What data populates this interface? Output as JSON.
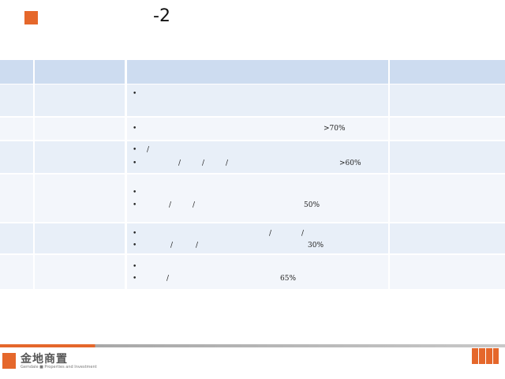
{
  "header": {
    "title": "-2"
  },
  "table": {
    "rows": [
      {
        "lines": [
          [
            "•"
          ]
        ]
      },
      {
        "lines": [
          [
            "•",
            ">70%"
          ]
        ]
      },
      {
        "lines": [
          [
            "•",
            "/"
          ],
          [
            "•",
            "/",
            "/",
            "/",
            ">60%"
          ]
        ]
      },
      {
        "lines": [
          [
            "•"
          ],
          [
            "•",
            "/",
            "/",
            "50%"
          ]
        ]
      },
      {
        "lines": [
          [
            "•",
            "/",
            "/"
          ],
          [
            "•",
            "/",
            "/",
            "30%"
          ]
        ]
      },
      {
        "lines": [
          [
            "•"
          ],
          [
            "•",
            "/",
            "65%"
          ]
        ]
      }
    ]
  },
  "footer": {
    "brand_name": "金地商置",
    "tagline": "Gemdale ■ Properties and Investment"
  }
}
